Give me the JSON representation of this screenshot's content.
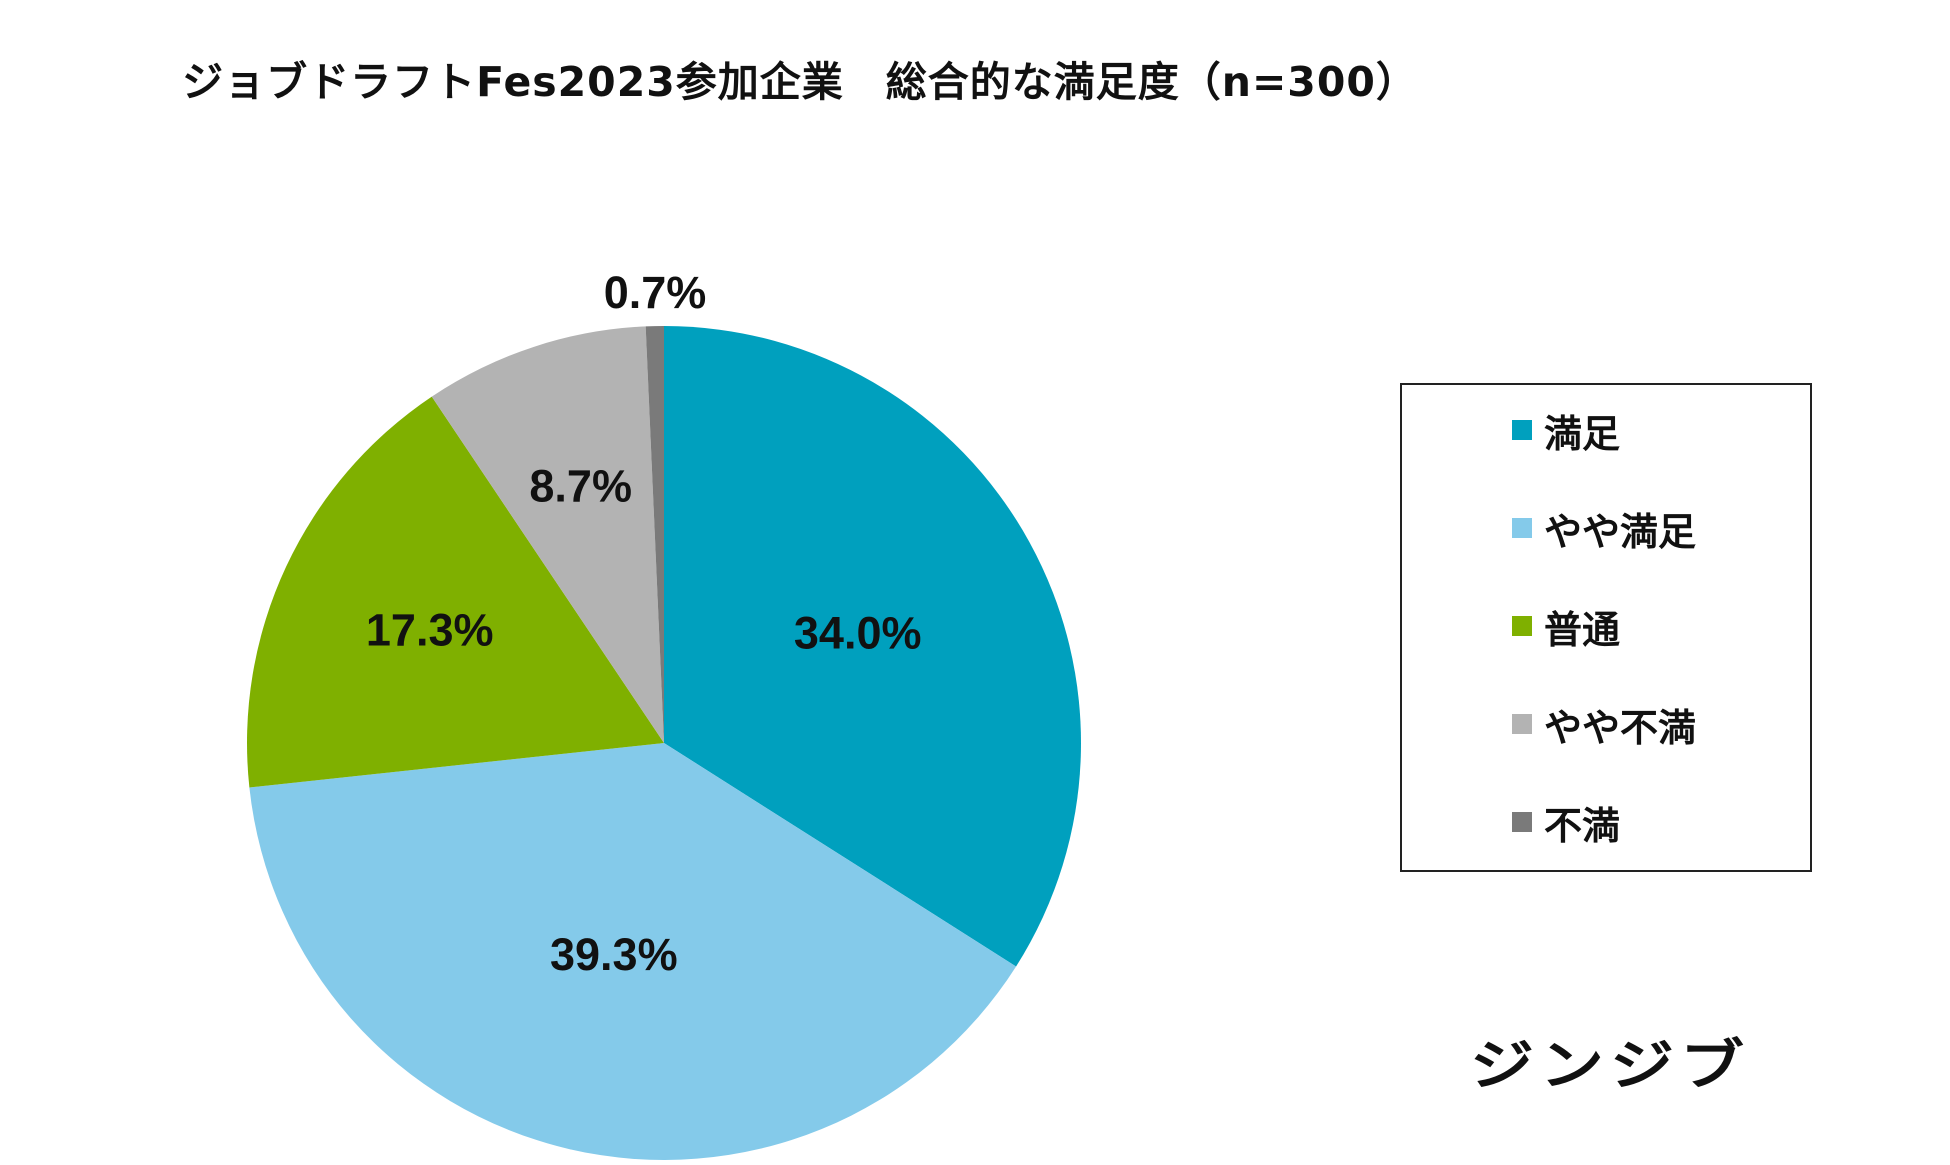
{
  "chart_data": {
    "type": "pie",
    "title": "ジョブドラフトFes2023参加企業　総合的な満足度（n=300）",
    "start": "12 o'clock",
    "direction": "clockwise",
    "unit": "%",
    "slices": [
      {
        "label": "満足",
        "value": 34.0,
        "display": "34.0%",
        "color": "#00A0BE"
      },
      {
        "label": "やや満足",
        "value": 39.3,
        "display": "39.3%",
        "color": "#84CAEA"
      },
      {
        "label": "普通",
        "value": 17.3,
        "display": "17.3%",
        "color": "#7FB000"
      },
      {
        "label": "やや不満",
        "value": 8.7,
        "display": "8.7%",
        "color": "#B3B3B3"
      },
      {
        "label": "不満",
        "value": 0.7,
        "display": "0.7%",
        "color": "#7A7A7A"
      }
    ],
    "legend_position": "right"
  },
  "brand": {
    "logo_text": "ジンジブ"
  }
}
